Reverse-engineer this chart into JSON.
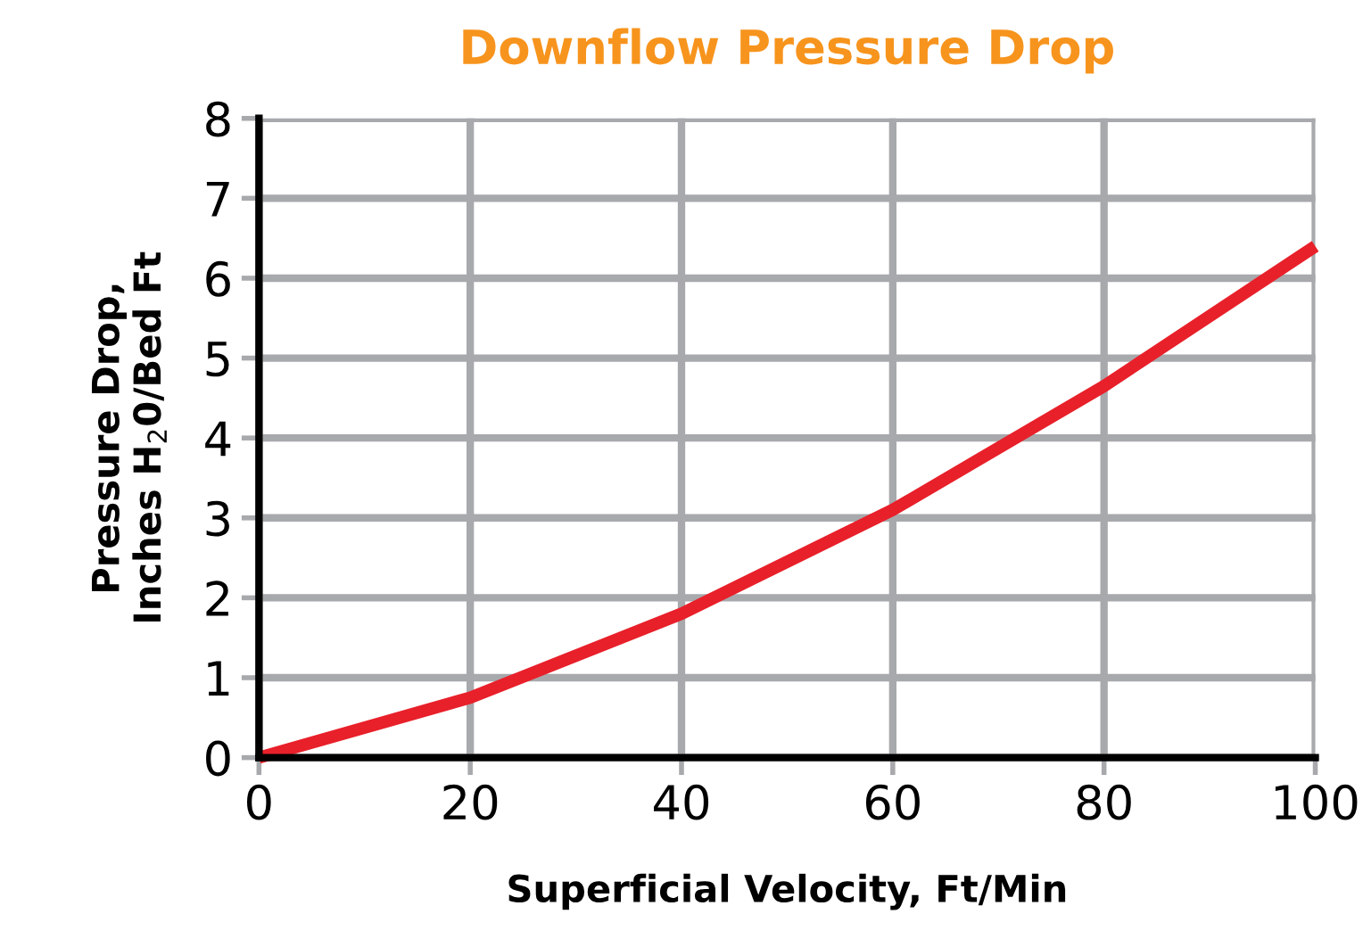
{
  "chart_data": {
    "type": "line",
    "title": "Downflow Pressure Drop",
    "xlabel": "Superficial Velocity, Ft/Min",
    "ylabel": "Pressure Drop,\nInches H$_{2}$0/Bed Ft",
    "x": [
      0,
      20,
      40,
      60,
      80,
      100
    ],
    "series": [
      {
        "color": "#e8202a",
        "values": [
          0,
          0.75,
          1.8,
          3.1,
          4.65,
          6.4
        ]
      }
    ],
    "xlim": [
      0,
      100
    ],
    "ylim": [
      0,
      8
    ],
    "xticks": [
      0,
      20,
      40,
      60,
      80,
      100
    ],
    "yticks": [
      0,
      1,
      2,
      3,
      4,
      5,
      6,
      7,
      8
    ],
    "grid": true,
    "marker": "none",
    "line_style": "solid"
  }
}
